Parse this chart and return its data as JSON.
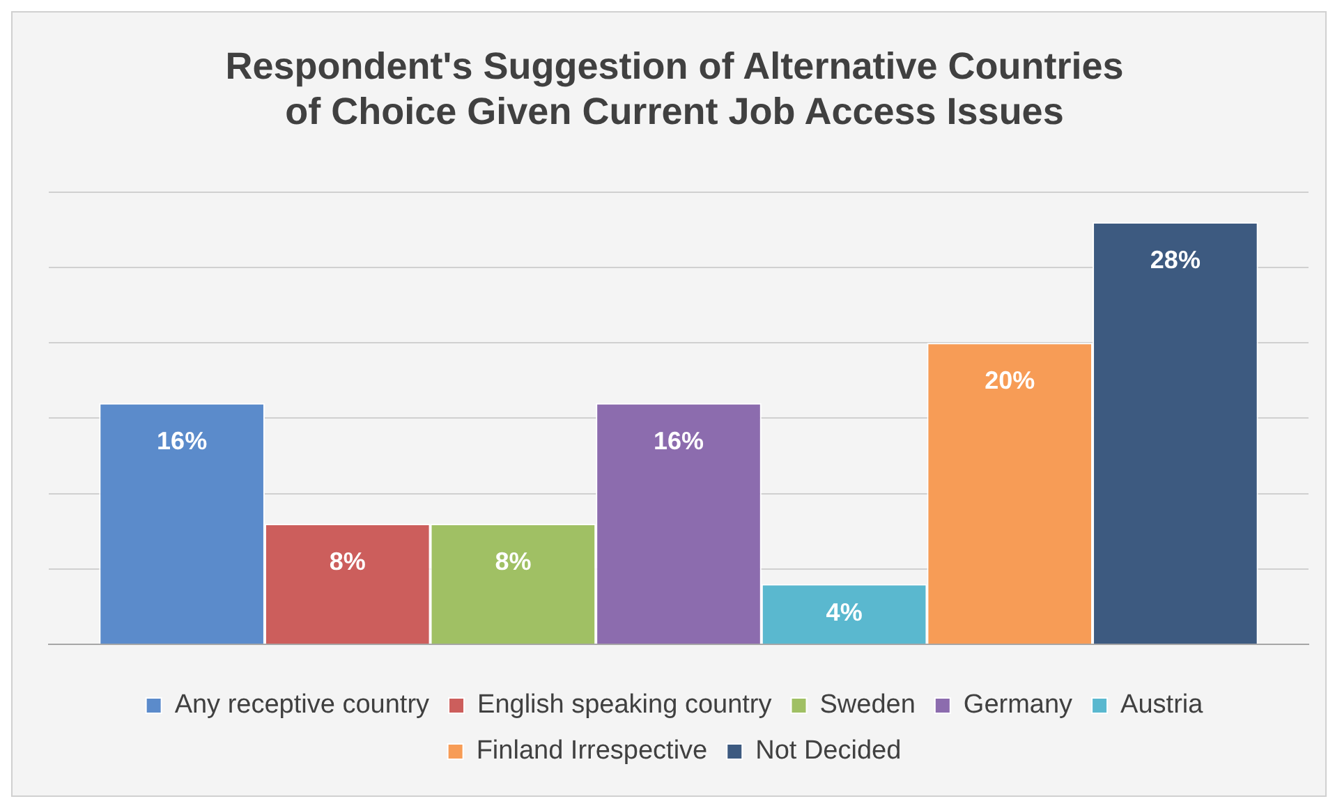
{
  "chart_data": {
    "type": "bar",
    "title": "Respondent's Suggestion of Alternative Countries of Choice Given Current Job Access Issues",
    "categories": [
      null
    ],
    "series": [
      {
        "name": "Any receptive country",
        "color": "#5b8bcb",
        "values": [
          16
        ],
        "value_labels": [
          "16%"
        ]
      },
      {
        "name": "English speaking country",
        "color": "#cc5e5c",
        "values": [
          8
        ],
        "value_labels": [
          "8%"
        ]
      },
      {
        "name": "Sweden",
        "color": "#a0c064",
        "values": [
          8
        ],
        "value_labels": [
          "8%"
        ]
      },
      {
        "name": "Germany",
        "color": "#8c6cae",
        "values": [
          16
        ],
        "value_labels": [
          "16%"
        ]
      },
      {
        "name": "Austria",
        "color": "#5ab8cf",
        "values": [
          4
        ],
        "value_labels": [
          "4%"
        ]
      },
      {
        "name": "Finland Irrespective",
        "color": "#f79c56",
        "values": [
          20
        ],
        "value_labels": [
          "20%"
        ]
      },
      {
        "name": "Not Decided",
        "color": "#3d5a80",
        "values": [
          28
        ],
        "value_labels": [
          "28%"
        ]
      }
    ],
    "ylim": [
      0,
      30
    ],
    "yticks": [
      {
        "value": 0,
        "label": null
      },
      {
        "value": 5,
        "label": null
      },
      {
        "value": 10,
        "label": null
      },
      {
        "value": 15,
        "label": null
      },
      {
        "value": 20,
        "label": null
      },
      {
        "value": 25,
        "label": null
      },
      {
        "value": 30,
        "label": null
      }
    ],
    "grid": "y",
    "legend": "bottom"
  }
}
